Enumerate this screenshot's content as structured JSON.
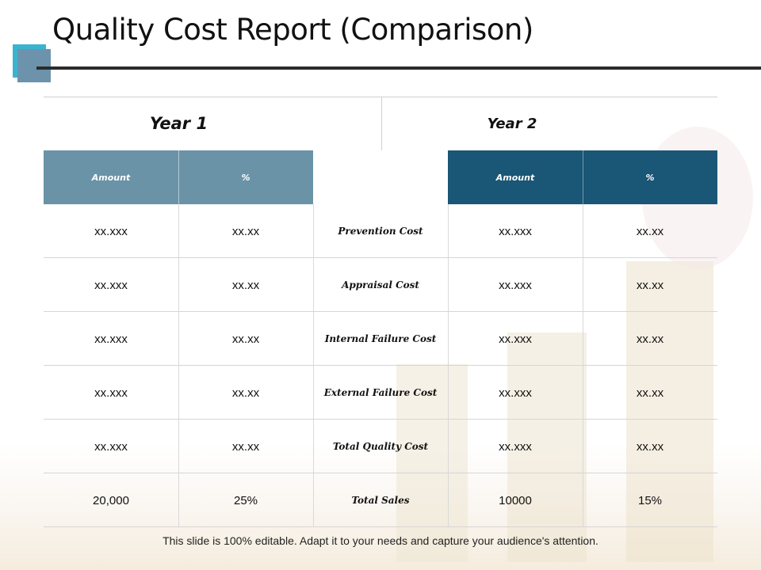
{
  "title": "Quality Cost Report (Comparison)",
  "table": {
    "year1_label": "Year 1",
    "year2_label": "Year 2",
    "columns": {
      "y1_amount": "Amount",
      "y1_percent": "%",
      "y2_amount": "Amount",
      "y2_percent": "%"
    },
    "rows": [
      {
        "label": "Prevention Cost",
        "y1_amount": "xx.xxx",
        "y1_percent": "xx.xx",
        "y2_amount": "xx.xxx",
        "y2_percent": "xx.xx"
      },
      {
        "label": "Appraisal Cost",
        "y1_amount": "xx.xxx",
        "y1_percent": "xx.xx",
        "y2_amount": "xx.xxx",
        "y2_percent": "xx.xx"
      },
      {
        "label": "Internal Failure Cost",
        "y1_amount": "xx.xxx",
        "y1_percent": "xx.xx",
        "y2_amount": "xx.xxx",
        "y2_percent": "xx.xx"
      },
      {
        "label": "External Failure Cost",
        "y1_amount": "xx.xxx",
        "y1_percent": "xx.xx",
        "y2_amount": "xx.xxx",
        "y2_percent": "xx.xx"
      },
      {
        "label": "Total Quality Cost",
        "y1_amount": "xx.xxx",
        "y1_percent": "xx.xx",
        "y2_amount": "xx.xxx",
        "y2_percent": "xx.xx"
      },
      {
        "label": "Total Sales",
        "y1_amount": "20,000",
        "y1_percent": "25%",
        "y2_amount": "10000",
        "y2_percent": "15%"
      }
    ]
  },
  "footer": "This slide is 100% editable. Adapt it to your needs and capture your audience's attention.",
  "colors": {
    "accent_light": "#3ab3d0",
    "year1_header": "#6a93a8",
    "year2_header": "#1a5675"
  }
}
